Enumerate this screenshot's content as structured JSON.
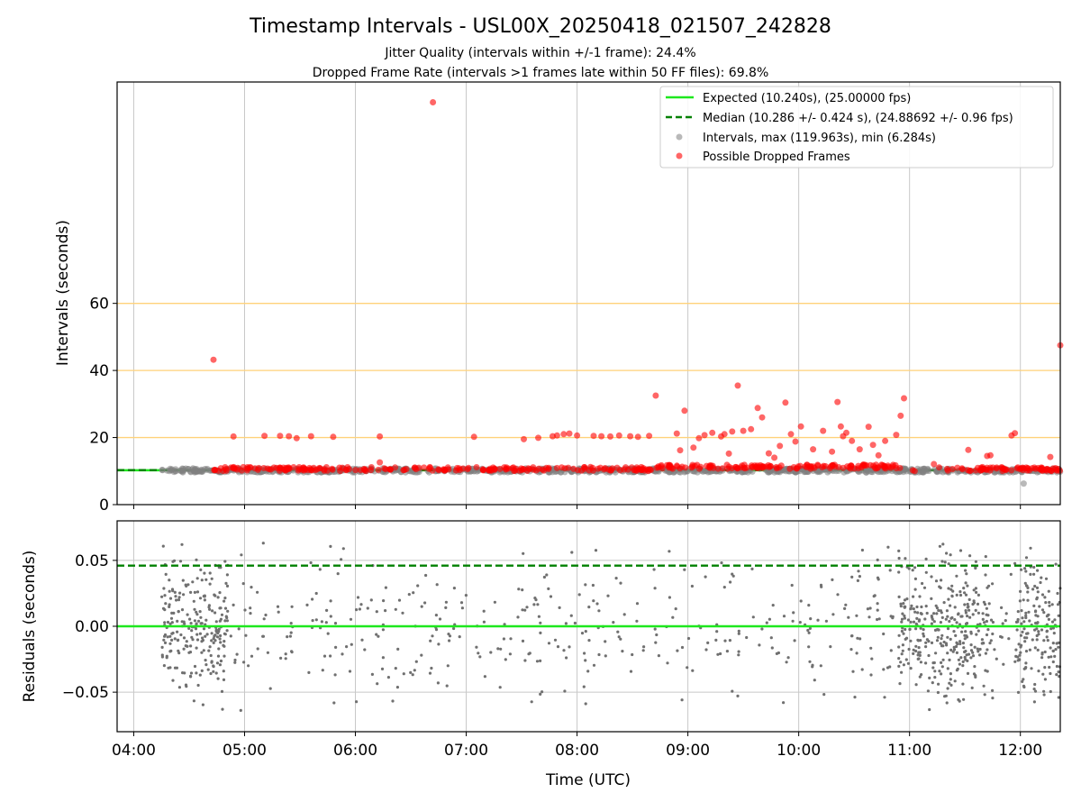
{
  "figure": {
    "title": "Timestamp Intervals - USL00X_20250418_021507_242828",
    "subtitle_1": "Jitter Quality (intervals within +/-1 frame): 24.4%",
    "subtitle_2": "Dropped Frame Rate (intervals >1 frames late within 50 FF files): 69.8%"
  },
  "chart_data": [
    {
      "type": "scatter",
      "panel": "intervals",
      "ylabel": "Intervals (seconds)",
      "xlabel": "",
      "xlim_hours": [
        3.85,
        12.36
      ],
      "ylim": [
        0,
        126
      ],
      "x_ticks": [
        "04:00",
        "05:00",
        "06:00",
        "07:00",
        "08:00",
        "09:00",
        "10:00",
        "11:00",
        "12:00"
      ],
      "y_ticks": [
        "0",
        "20",
        "40",
        "60"
      ],
      "grid": "vertical at x ticks; horizontal orange lines at 20, 40, 60",
      "reference_lines": {
        "expected": 10.24,
        "median": 10.286,
        "threshold_lines": [
          20,
          40,
          60
        ]
      },
      "legend": {
        "placement": "top-right",
        "entries": [
          "Expected (10.240s), (25.00000 fps)",
          "Median (10.286 +/- 0.424 s), (24.88692 +/- 0.96 fps)",
          "Intervals, max (119.963s), min (6.284s)",
          "Possible Dropped Frames"
        ]
      },
      "series": [
        {
          "name": "Intervals, max (119.963s), min (6.284s)",
          "color": "#808080",
          "coverage_hours": [
            [
              4.25,
              4.7
            ],
            [
              4.7,
              10.4
            ],
            [
              10.4,
              12.36
            ]
          ],
          "typical_value": 10.2,
          "min_point": {
            "x": 12.03,
            "y": 6.284
          }
        },
        {
          "name": "Possible Dropped Frames",
          "color": "#ff0000",
          "band_hours": [
            4.7,
            12.36
          ],
          "band_value_range": [
            10.0,
            11.5
          ],
          "outliers": [
            {
              "x": 4.72,
              "y": 43.2
            },
            {
              "x": 4.9,
              "y": 20.3
            },
            {
              "x": 5.18,
              "y": 20.5
            },
            {
              "x": 5.32,
              "y": 20.5
            },
            {
              "x": 5.4,
              "y": 20.4
            },
            {
              "x": 5.47,
              "y": 19.8
            },
            {
              "x": 5.6,
              "y": 20.4
            },
            {
              "x": 5.8,
              "y": 20.2
            },
            {
              "x": 6.22,
              "y": 20.3
            },
            {
              "x": 6.22,
              "y": 12.6
            },
            {
              "x": 6.7,
              "y": 119.963
            },
            {
              "x": 7.07,
              "y": 20.2
            },
            {
              "x": 7.52,
              "y": 19.5
            },
            {
              "x": 7.65,
              "y": 19.9
            },
            {
              "x": 7.78,
              "y": 20.4
            },
            {
              "x": 7.82,
              "y": 20.6
            },
            {
              "x": 7.88,
              "y": 21.0
            },
            {
              "x": 7.93,
              "y": 21.2
            },
            {
              "x": 8.0,
              "y": 20.6
            },
            {
              "x": 8.15,
              "y": 20.5
            },
            {
              "x": 8.22,
              "y": 20.4
            },
            {
              "x": 8.3,
              "y": 20.3
            },
            {
              "x": 8.38,
              "y": 20.6
            },
            {
              "x": 8.48,
              "y": 20.4
            },
            {
              "x": 8.55,
              "y": 20.2
            },
            {
              "x": 8.65,
              "y": 20.5
            },
            {
              "x": 8.71,
              "y": 32.5
            },
            {
              "x": 8.9,
              "y": 21.2
            },
            {
              "x": 8.93,
              "y": 16.2
            },
            {
              "x": 8.97,
              "y": 28.0
            },
            {
              "x": 9.05,
              "y": 17.0
            },
            {
              "x": 9.1,
              "y": 19.8
            },
            {
              "x": 9.15,
              "y": 20.7
            },
            {
              "x": 9.22,
              "y": 21.4
            },
            {
              "x": 9.3,
              "y": 20.3
            },
            {
              "x": 9.33,
              "y": 21.0
            },
            {
              "x": 9.37,
              "y": 15.2
            },
            {
              "x": 9.4,
              "y": 21.8
            },
            {
              "x": 9.45,
              "y": 35.5
            },
            {
              "x": 9.5,
              "y": 22.0
            },
            {
              "x": 9.57,
              "y": 22.5
            },
            {
              "x": 9.63,
              "y": 28.8
            },
            {
              "x": 9.67,
              "y": 26.0
            },
            {
              "x": 9.73,
              "y": 15.3
            },
            {
              "x": 9.78,
              "y": 14.0
            },
            {
              "x": 9.83,
              "y": 17.5
            },
            {
              "x": 9.88,
              "y": 30.4
            },
            {
              "x": 9.93,
              "y": 21.0
            },
            {
              "x": 9.97,
              "y": 18.8
            },
            {
              "x": 10.02,
              "y": 23.3
            },
            {
              "x": 10.13,
              "y": 16.5
            },
            {
              "x": 10.22,
              "y": 22.0
            },
            {
              "x": 10.3,
              "y": 15.8
            },
            {
              "x": 10.35,
              "y": 30.6
            },
            {
              "x": 10.38,
              "y": 23.3
            },
            {
              "x": 10.4,
              "y": 20.4
            },
            {
              "x": 10.43,
              "y": 21.4
            },
            {
              "x": 10.48,
              "y": 19.0
            },
            {
              "x": 10.55,
              "y": 16.5
            },
            {
              "x": 10.63,
              "y": 23.2
            },
            {
              "x": 10.67,
              "y": 17.8
            },
            {
              "x": 10.72,
              "y": 14.7
            },
            {
              "x": 10.78,
              "y": 19.0
            },
            {
              "x": 10.88,
              "y": 20.8
            },
            {
              "x": 10.92,
              "y": 26.5
            },
            {
              "x": 10.95,
              "y": 31.7
            },
            {
              "x": 11.22,
              "y": 12.1
            },
            {
              "x": 11.53,
              "y": 16.3
            },
            {
              "x": 11.7,
              "y": 14.5
            },
            {
              "x": 11.73,
              "y": 14.7
            },
            {
              "x": 11.92,
              "y": 20.6
            },
            {
              "x": 11.95,
              "y": 21.3
            },
            {
              "x": 12.27,
              "y": 14.2
            },
            {
              "x": 12.36,
              "y": 47.5
            }
          ]
        }
      ]
    },
    {
      "type": "scatter",
      "panel": "residuals",
      "ylabel": "Residuals (seconds)",
      "xlabel": "Time (UTC)",
      "xlim_hours": [
        3.85,
        12.36
      ],
      "ylim": [
        -0.08,
        0.08
      ],
      "x_ticks": [
        "04:00",
        "05:00",
        "06:00",
        "07:00",
        "08:00",
        "09:00",
        "10:00",
        "11:00",
        "12:00"
      ],
      "y_ticks": [
        "0.05",
        "0.00",
        "−0.05"
      ],
      "grid": "vertical at x ticks; horizontal at y ticks",
      "reference_lines": {
        "expected": 0.0,
        "median": 0.046
      },
      "series": [
        {
          "name": "",
          "color": "#707070",
          "dense_hours": [
            [
              4.25,
              4.85
            ],
            [
              10.9,
              11.75
            ],
            [
              11.95,
              12.36
            ]
          ],
          "sparse_hours": [
            [
              4.85,
              10.9
            ],
            [
              11.75,
              11.95
            ]
          ],
          "value_range": [
            -0.08,
            0.08
          ]
        }
      ]
    }
  ],
  "colors": {
    "expected_line": "#1ee81e",
    "median_line": "#008000",
    "threshold_line": "#ffd27a",
    "grid": "#c8c8c8",
    "intervals_point": "#808080",
    "dropped_point": "#ff0000",
    "residual_point": "#707070"
  }
}
